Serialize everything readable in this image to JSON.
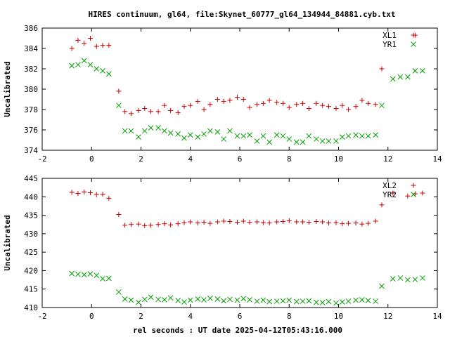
{
  "title": "HIRES continuum, gl64, file:Skynet_60777_gl64_134944_84881.cyb.txt",
  "xlabel": "rel seconds : UT date 2025-04-12T05:43:16.000",
  "colors": {
    "red": "#cc0000",
    "green": "#00a000"
  },
  "chart_data": [
    {
      "type": "scatter",
      "ylabel": "Uncalibrated",
      "xlim": [
        -2,
        14
      ],
      "ylim": [
        374,
        386
      ],
      "xticks": [
        "-2",
        "0",
        "2",
        "4",
        "6",
        "8",
        "10",
        "12",
        "14"
      ],
      "yticks": [
        "374",
        "376",
        "378",
        "380",
        "382",
        "384",
        "386"
      ],
      "legend_position": "top-right",
      "series": [
        {
          "name": "XL1",
          "marker": "plus",
          "color": "#cc0000",
          "x": [
            -0.8,
            -0.55,
            -0.3,
            -0.05,
            0.2,
            0.45,
            0.7,
            1.1,
            1.35,
            1.6,
            1.9,
            2.15,
            2.4,
            2.7,
            2.95,
            3.2,
            3.5,
            3.75,
            4.0,
            4.3,
            4.55,
            4.8,
            5.1,
            5.35,
            5.6,
            5.9,
            6.15,
            6.4,
            6.7,
            6.95,
            7.2,
            7.5,
            7.75,
            8.0,
            8.3,
            8.55,
            8.8,
            9.1,
            9.35,
            9.6,
            9.9,
            10.15,
            10.4,
            10.7,
            10.95,
            11.2,
            11.5,
            11.75,
            13.1
          ],
          "y": [
            384.0,
            384.8,
            384.5,
            385.0,
            384.2,
            384.3,
            384.3,
            379.8,
            377.8,
            377.6,
            377.9,
            378.1,
            377.8,
            377.8,
            378.4,
            377.9,
            377.7,
            378.3,
            378.4,
            378.8,
            378.0,
            378.5,
            379.0,
            378.8,
            378.9,
            379.2,
            379.0,
            378.2,
            378.5,
            378.6,
            378.9,
            378.7,
            378.6,
            378.2,
            378.5,
            378.6,
            378.1,
            378.6,
            378.4,
            378.3,
            378.1,
            378.4,
            378.0,
            378.3,
            378.9,
            378.6,
            378.5,
            382.0,
            385.3
          ]
        },
        {
          "name": "YR1",
          "marker": "cross",
          "color": "#00a000",
          "x": [
            -0.8,
            -0.55,
            -0.3,
            -0.05,
            0.2,
            0.45,
            0.7,
            1.1,
            1.35,
            1.6,
            1.9,
            2.15,
            2.4,
            2.7,
            2.95,
            3.2,
            3.5,
            3.75,
            4.0,
            4.3,
            4.55,
            4.8,
            5.1,
            5.35,
            5.6,
            5.9,
            6.15,
            6.4,
            6.7,
            6.95,
            7.2,
            7.5,
            7.75,
            8.0,
            8.3,
            8.55,
            8.8,
            9.1,
            9.35,
            9.6,
            9.9,
            10.15,
            10.4,
            10.7,
            10.95,
            11.2,
            11.5,
            11.75,
            12.2,
            12.5,
            12.8,
            13.1,
            13.4
          ],
          "y": [
            382.3,
            382.4,
            382.8,
            382.4,
            382.0,
            381.8,
            381.5,
            378.4,
            375.9,
            375.9,
            375.3,
            375.9,
            376.2,
            376.2,
            375.9,
            375.7,
            375.6,
            375.2,
            375.5,
            375.3,
            375.6,
            375.9,
            375.8,
            375.1,
            375.9,
            375.4,
            375.4,
            375.5,
            374.9,
            375.4,
            374.8,
            375.5,
            375.4,
            375.1,
            374.8,
            374.8,
            375.4,
            375.1,
            374.9,
            374.9,
            374.9,
            375.3,
            375.4,
            375.5,
            375.4,
            375.4,
            375.5,
            378.4,
            381.0,
            381.2,
            381.2,
            381.8,
            381.8
          ]
        }
      ]
    },
    {
      "type": "scatter",
      "ylabel": "Uncalibrated",
      "xlim": [
        -2,
        14
      ],
      "ylim": [
        410,
        445
      ],
      "xticks": [
        "-2",
        "0",
        "2",
        "4",
        "6",
        "8",
        "10",
        "12",
        "14"
      ],
      "yticks": [
        "410",
        "415",
        "420",
        "425",
        "430",
        "435",
        "440",
        "445"
      ],
      "legend_position": "top-right",
      "series": [
        {
          "name": "XL2",
          "marker": "plus",
          "color": "#cc0000",
          "x": [
            -0.8,
            -0.55,
            -0.3,
            -0.05,
            0.2,
            0.45,
            0.7,
            1.1,
            1.35,
            1.6,
            1.9,
            2.15,
            2.4,
            2.7,
            2.95,
            3.2,
            3.5,
            3.75,
            4.0,
            4.3,
            4.55,
            4.8,
            5.1,
            5.35,
            5.6,
            5.9,
            6.15,
            6.4,
            6.7,
            6.95,
            7.2,
            7.5,
            7.75,
            8.0,
            8.3,
            8.55,
            8.8,
            9.1,
            9.35,
            9.6,
            9.9,
            10.15,
            10.4,
            10.7,
            10.95,
            11.2,
            11.5,
            11.75,
            12.2,
            12.8,
            13.1,
            13.4
          ],
          "y": [
            441.2,
            440.9,
            441.3,
            441.1,
            440.6,
            440.7,
            439.6,
            435.2,
            432.3,
            432.5,
            432.6,
            432.2,
            432.3,
            432.5,
            432.7,
            432.4,
            432.7,
            433.0,
            433.2,
            432.9,
            433.1,
            432.8,
            433.2,
            433.4,
            433.3,
            433.1,
            433.4,
            433.1,
            433.2,
            433.0,
            432.9,
            433.2,
            433.3,
            433.5,
            433.2,
            433.2,
            433.1,
            433.3,
            433.2,
            432.9,
            433.0,
            432.7,
            432.8,
            432.9,
            432.6,
            432.8,
            433.4,
            437.8,
            441.0,
            440.2,
            440.8,
            441.0
          ]
        },
        {
          "name": "YR2",
          "marker": "cross",
          "color": "#00a000",
          "x": [
            -0.8,
            -0.55,
            -0.3,
            -0.05,
            0.2,
            0.45,
            0.7,
            1.1,
            1.35,
            1.6,
            1.9,
            2.15,
            2.4,
            2.7,
            2.95,
            3.2,
            3.5,
            3.75,
            4.0,
            4.3,
            4.55,
            4.8,
            5.1,
            5.35,
            5.6,
            5.9,
            6.15,
            6.4,
            6.7,
            6.95,
            7.2,
            7.5,
            7.75,
            8.0,
            8.3,
            8.55,
            8.8,
            9.1,
            9.35,
            9.6,
            9.9,
            10.15,
            10.4,
            10.7,
            10.95,
            11.2,
            11.5,
            11.75,
            12.2,
            12.5,
            12.8,
            13.1,
            13.4
          ],
          "y": [
            419.2,
            419.0,
            418.9,
            419.1,
            418.7,
            417.8,
            417.9,
            414.2,
            412.3,
            412.0,
            411.4,
            412.2,
            412.8,
            412.2,
            412.1,
            412.6,
            411.9,
            411.5,
            412.0,
            412.3,
            412.1,
            412.5,
            412.3,
            411.8,
            412.2,
            412.0,
            412.4,
            412.1,
            411.7,
            412.0,
            411.6,
            411.7,
            411.8,
            412.0,
            411.6,
            411.7,
            411.8,
            411.4,
            411.3,
            411.6,
            411.2,
            411.5,
            411.7,
            412.0,
            412.1,
            411.9,
            411.7,
            415.8,
            417.8,
            418.0,
            417.5,
            417.6,
            418.0
          ]
        }
      ]
    }
  ]
}
